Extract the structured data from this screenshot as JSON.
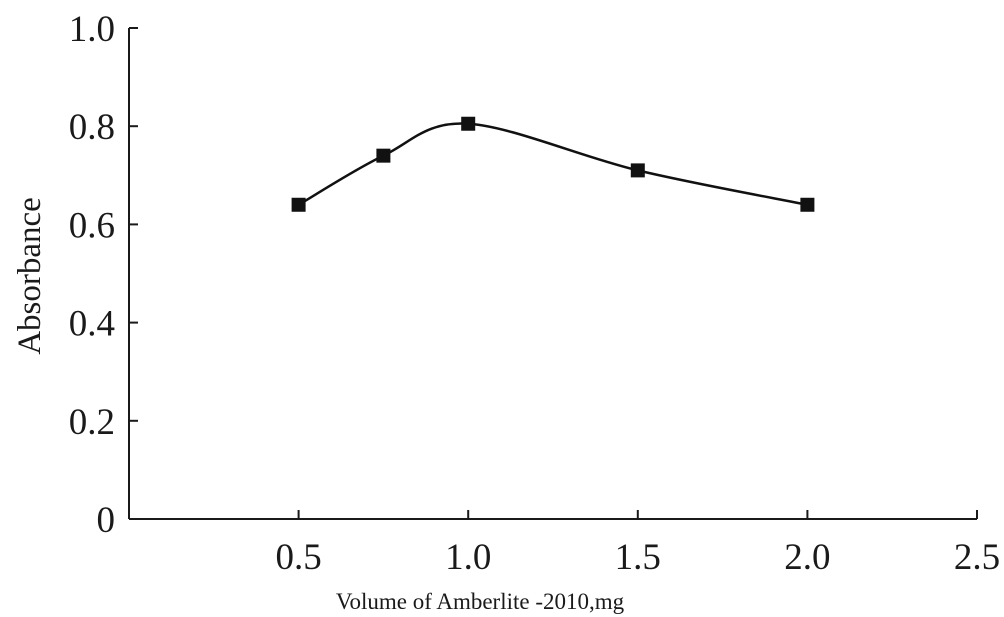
{
  "chart_data": {
    "type": "line",
    "title": "",
    "xlabel": "Volume of Amberlite -2010,mg",
    "ylabel": "Absorbance",
    "xlim": [
      0,
      2.5
    ],
    "ylim": [
      0,
      1.0
    ],
    "x_ticks": [
      "0.5",
      "1.0",
      "1.5",
      "2.0",
      "2.5"
    ],
    "x_tick_values": [
      0.5,
      1.0,
      1.5,
      2.0,
      2.5
    ],
    "y_ticks": [
      "0",
      "0.2",
      "0.4",
      "0.6",
      "0.8",
      "1.0"
    ],
    "y_tick_values": [
      0,
      0.2,
      0.4,
      0.6,
      0.8,
      1.0
    ],
    "grid": false,
    "legend": "none",
    "series": [
      {
        "marker": "square",
        "line_style": "smooth",
        "color": "#111111",
        "x": [
          0.5,
          0.75,
          1.0,
          1.5,
          2.0
        ],
        "y": [
          0.64,
          0.74,
          0.805,
          0.71,
          0.64
        ]
      }
    ]
  }
}
